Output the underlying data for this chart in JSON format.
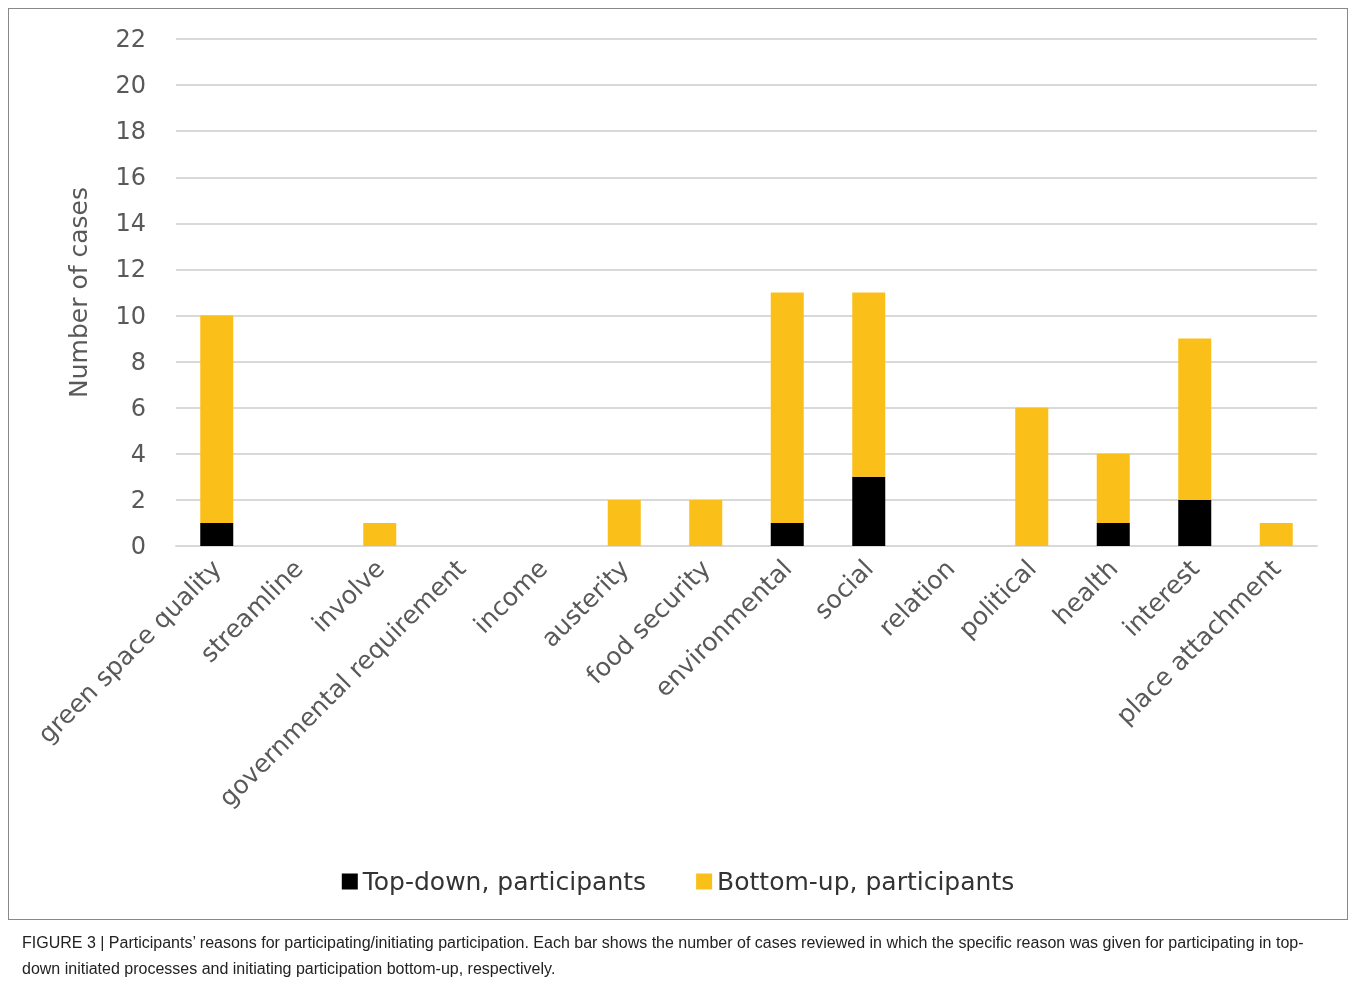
{
  "chart_data": {
    "type": "bar",
    "stacked": true,
    "ylabel": "Number of cases",
    "categories": [
      "green space quality",
      "streamline",
      "involve",
      "governmental requirement",
      "income",
      "austerity",
      "food security",
      "environmental",
      "social",
      "relation",
      "political",
      "health",
      "interest",
      "place attachment"
    ],
    "series": [
      {
        "name": "Top-down, participants",
        "color": "#000000",
        "values": [
          1,
          0,
          0,
          0,
          0,
          0,
          0,
          1,
          3,
          0,
          0,
          1,
          2,
          0
        ]
      },
      {
        "name": "Bottom-up, participants",
        "color": "#fbbf1a",
        "values": [
          9,
          0,
          1,
          0,
          0,
          2,
          2,
          10,
          8,
          0,
          6,
          3,
          7,
          1
        ]
      }
    ],
    "ylim": [
      0,
      22
    ],
    "yticks": [
      0,
      2,
      4,
      6,
      8,
      10,
      12,
      14,
      16,
      18,
      20,
      22
    ],
    "grid": "y",
    "legend": "bottom",
    "annotations": [
      "FIGURE 3 | Participants’ reasons for participating/initiating participation. Each bar shows the number of cases reviewed in which the specific reason was given for participating in top-down initiated processes and initiating participation bottom-up, respectively."
    ]
  }
}
